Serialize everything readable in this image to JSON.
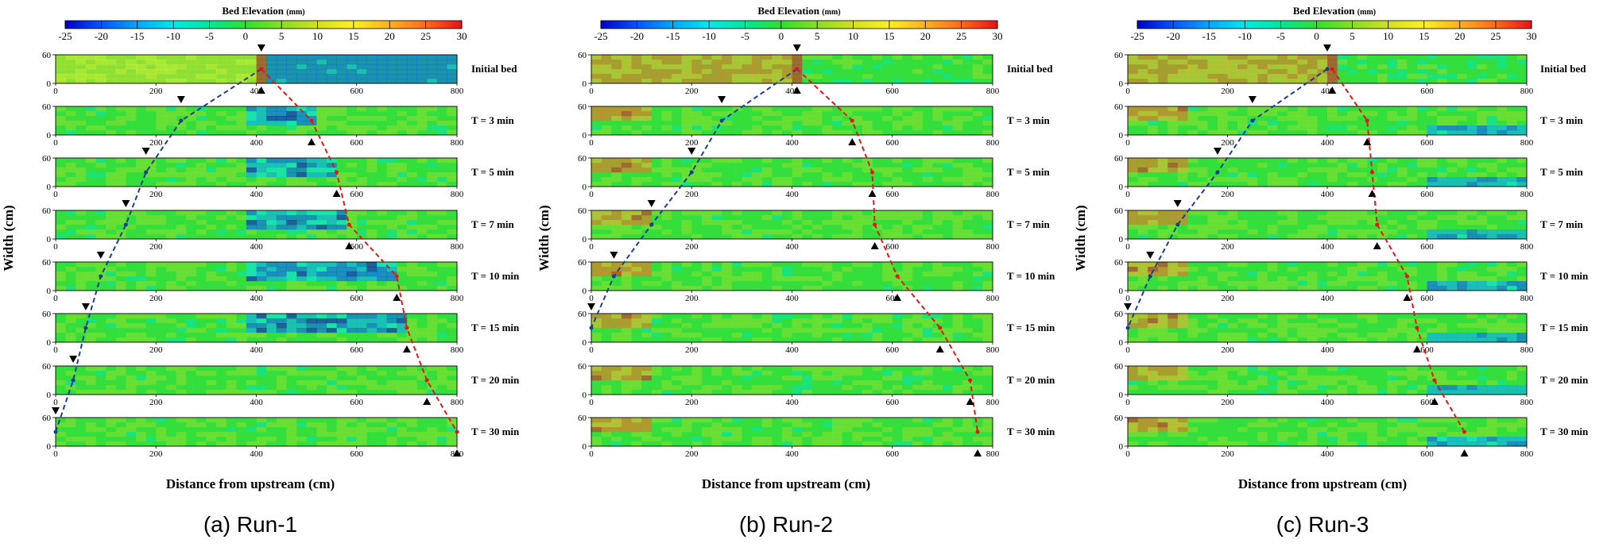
{
  "chart_data": {
    "type": "heatmap",
    "colorbar": {
      "title": "Bed Elevation",
      "unit": "(mm)",
      "ticks": [
        -25,
        -20,
        -15,
        -10,
        -5,
        0,
        5,
        10,
        15,
        20,
        25,
        30
      ],
      "range": [
        -25,
        30
      ],
      "colors": [
        "#0000c8",
        "#0055ff",
        "#00a8ff",
        "#00e8e8",
        "#00e69a",
        "#2ee02e",
        "#86e020",
        "#d2e020",
        "#fff020",
        "#ffb020",
        "#ff6a1a",
        "#e8101a"
      ]
    },
    "x_ticks": [
      0,
      200,
      400,
      600,
      800
    ],
    "y_ticks": [
      0,
      60
    ],
    "xlim": [
      0,
      800
    ],
    "ylim": [
      0,
      60
    ],
    "ylabel": "Width (cm)",
    "xlabel": "Distance from upstream (cm)",
    "time_labels": [
      "Initial bed",
      "T = 3 min",
      "T = 5 min",
      "T = 7 min",
      "T = 10 min",
      "T = 15 min",
      "T = 20 min",
      "T = 30 min"
    ],
    "runs": [
      {
        "caption": "(a) Run-1",
        "upstream_front_cm": [
          410,
          250,
          180,
          140,
          90,
          60,
          35,
          0
        ],
        "downstream_front_cm": [
          410,
          510,
          560,
          585,
          680,
          700,
          740,
          800
        ]
      },
      {
        "caption": "(b) Run-2",
        "upstream_front_cm": [
          410,
          260,
          200,
          120,
          45,
          0
        ],
        "downstream_front_cm": [
          410,
          520,
          560,
          565,
          610,
          695,
          755,
          770
        ]
      },
      {
        "caption": "(c) Run-3",
        "upstream_front_cm": [
          400,
          250,
          180,
          100,
          45,
          0
        ],
        "downstream_front_cm": [
          410,
          480,
          490,
          500,
          560,
          580,
          615,
          675
        ]
      }
    ]
  }
}
